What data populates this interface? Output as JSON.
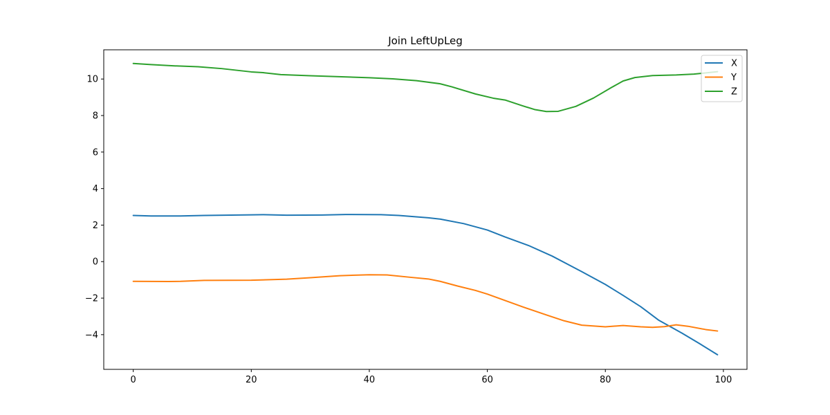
{
  "chart_data": {
    "type": "line",
    "title": "Join LeftUpLeg",
    "xlabel": "",
    "ylabel": "",
    "xlim": [
      -5,
      104
    ],
    "ylim": [
      -5.9,
      11.6
    ],
    "xticks": [
      0,
      20,
      40,
      60,
      80,
      100
    ],
    "yticks": [
      -4,
      -2,
      0,
      2,
      4,
      6,
      8,
      10
    ],
    "grid": false,
    "legend_position": "top-right",
    "series": [
      {
        "name": "X",
        "color": "#1f77b4",
        "points": [
          [
            0,
            2.53
          ],
          [
            3,
            2.5
          ],
          [
            8,
            2.5
          ],
          [
            12,
            2.53
          ],
          [
            20,
            2.56
          ],
          [
            22,
            2.57
          ],
          [
            26,
            2.54
          ],
          [
            32,
            2.55
          ],
          [
            36,
            2.58
          ],
          [
            42,
            2.57
          ],
          [
            45,
            2.53
          ],
          [
            50,
            2.4
          ],
          [
            52,
            2.33
          ],
          [
            56,
            2.08
          ],
          [
            60,
            1.73
          ],
          [
            63,
            1.35
          ],
          [
            67,
            0.88
          ],
          [
            71,
            0.3
          ],
          [
            76,
            -0.55
          ],
          [
            80,
            -1.25
          ],
          [
            83,
            -1.85
          ],
          [
            86,
            -2.47
          ],
          [
            89,
            -3.2
          ],
          [
            93,
            -3.92
          ],
          [
            96,
            -4.5
          ],
          [
            99,
            -5.1
          ]
        ]
      },
      {
        "name": "Y",
        "color": "#ff7f0e",
        "points": [
          [
            0,
            -1.08
          ],
          [
            6,
            -1.09
          ],
          [
            8,
            -1.08
          ],
          [
            12,
            -1.03
          ],
          [
            20,
            -1.02
          ],
          [
            26,
            -0.96
          ],
          [
            30,
            -0.88
          ],
          [
            35,
            -0.77
          ],
          [
            40,
            -0.72
          ],
          [
            43,
            -0.73
          ],
          [
            47,
            -0.86
          ],
          [
            50,
            -0.95
          ],
          [
            52,
            -1.08
          ],
          [
            55,
            -1.34
          ],
          [
            58,
            -1.58
          ],
          [
            60,
            -1.78
          ],
          [
            63,
            -2.13
          ],
          [
            66,
            -2.48
          ],
          [
            70,
            -2.92
          ],
          [
            73,
            -3.24
          ],
          [
            76,
            -3.48
          ],
          [
            80,
            -3.57
          ],
          [
            83,
            -3.5
          ],
          [
            86,
            -3.57
          ],
          [
            88,
            -3.6
          ],
          [
            90,
            -3.56
          ],
          [
            92,
            -3.46
          ],
          [
            94,
            -3.54
          ],
          [
            97,
            -3.72
          ],
          [
            99,
            -3.8
          ]
        ]
      },
      {
        "name": "Z",
        "color": "#2ca02c",
        "points": [
          [
            0,
            10.85
          ],
          [
            3,
            10.79
          ],
          [
            7,
            10.72
          ],
          [
            11,
            10.67
          ],
          [
            15,
            10.57
          ],
          [
            20,
            10.39
          ],
          [
            22,
            10.35
          ],
          [
            25,
            10.24
          ],
          [
            30,
            10.18
          ],
          [
            40,
            10.07
          ],
          [
            44,
            10.01
          ],
          [
            48,
            9.91
          ],
          [
            52,
            9.74
          ],
          [
            54,
            9.57
          ],
          [
            58,
            9.18
          ],
          [
            61,
            8.95
          ],
          [
            63,
            8.85
          ],
          [
            66,
            8.53
          ],
          [
            68,
            8.33
          ],
          [
            70,
            8.22
          ],
          [
            72,
            8.23
          ],
          [
            75,
            8.5
          ],
          [
            78,
            8.96
          ],
          [
            81,
            9.53
          ],
          [
            83,
            9.89
          ],
          [
            85,
            10.08
          ],
          [
            88,
            10.19
          ],
          [
            92,
            10.22
          ],
          [
            95,
            10.27
          ],
          [
            99,
            10.4
          ]
        ]
      }
    ]
  }
}
